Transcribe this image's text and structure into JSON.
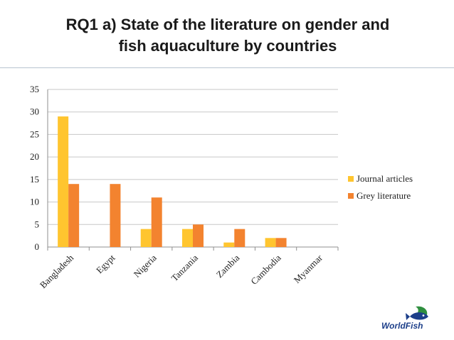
{
  "slide": {
    "title_line1": "RQ1 a) State of the literature on gender and",
    "title_line2": "fish aquaculture by countries",
    "logo_text": "WorldFish"
  },
  "colors": {
    "journal": "#FFC52F",
    "grey": "#F3832F",
    "grid": "#c7c7c7",
    "axis": "#8f8f8f",
    "logo": "#1d3f8a"
  },
  "chart_data": {
    "type": "bar",
    "categories": [
      "Bangladesh",
      "Egypt",
      "Nigeria",
      "Tanzania",
      "Zambia",
      "Cambodia",
      "Myanmar"
    ],
    "series": [
      {
        "name": "Journal articles",
        "values": [
          29,
          0,
          4,
          4,
          1,
          2,
          0
        ]
      },
      {
        "name": "Grey literature",
        "values": [
          14,
          14,
          11,
          5,
          4,
          2,
          0
        ]
      }
    ],
    "ylim": [
      0,
      35
    ],
    "yticks": [
      0,
      5,
      10,
      15,
      20,
      25,
      30,
      35
    ],
    "grid": true,
    "legend": "right"
  }
}
